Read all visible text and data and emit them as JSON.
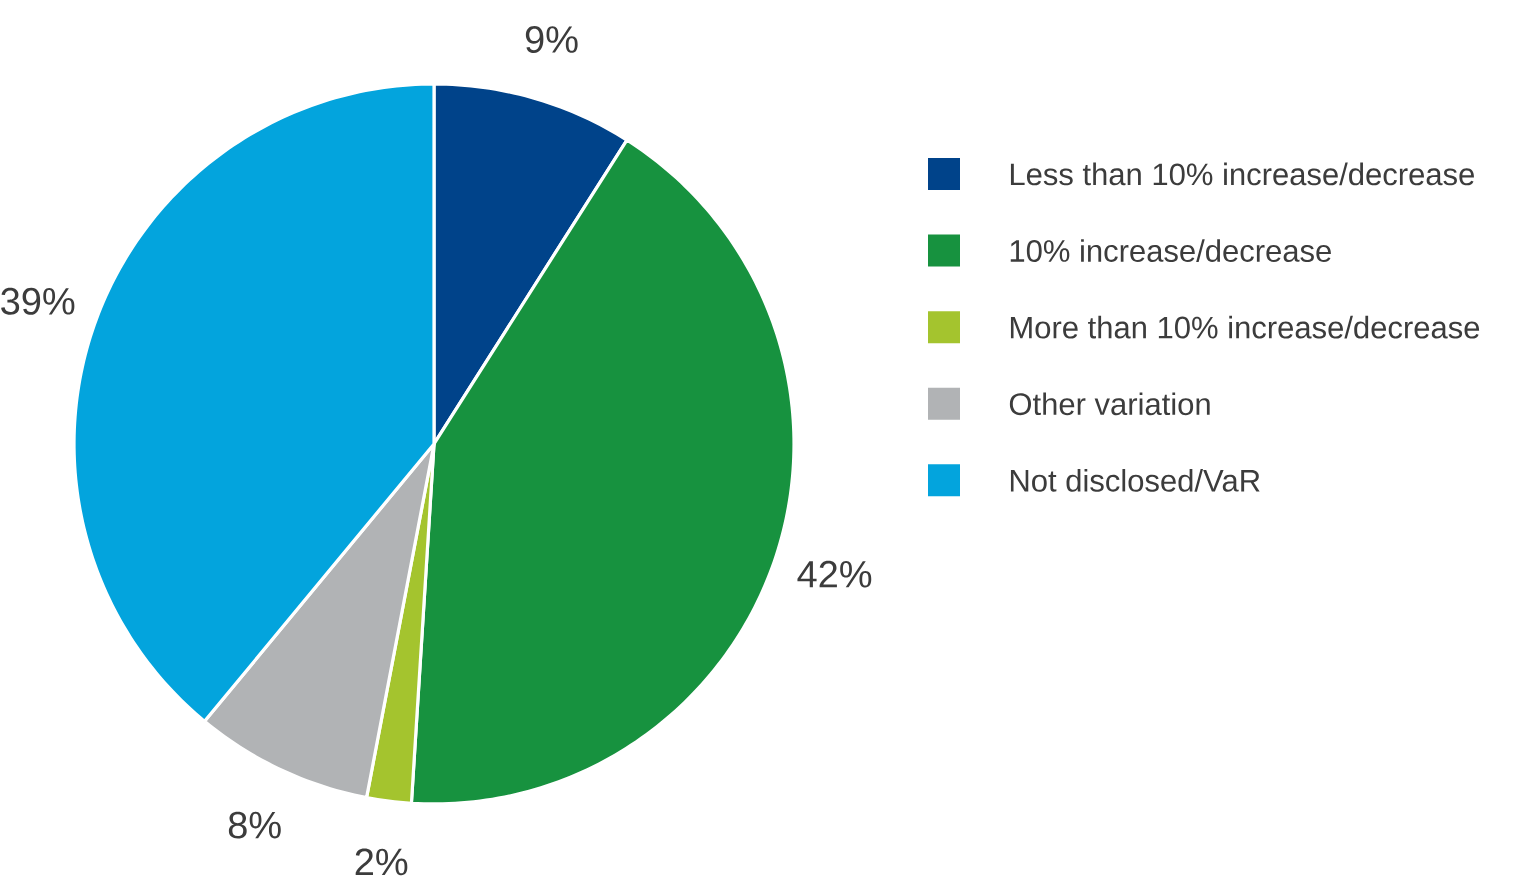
{
  "chart_data": {
    "type": "pie",
    "categories": [
      "Less than 10% increase/decrease",
      "10% increase/decrease",
      "More than 10% increase/decrease",
      "Other variation",
      "Not disclosed/VaR"
    ],
    "values": [
      9,
      42,
      2,
      8,
      39
    ],
    "colors": [
      "#00438a",
      "#17923f",
      "#a4c42e",
      "#b1b3b5",
      "#03a4dd"
    ],
    "value_labels": [
      "9%",
      "42%",
      "2%",
      "8%",
      "39%"
    ],
    "legend": "right"
  }
}
